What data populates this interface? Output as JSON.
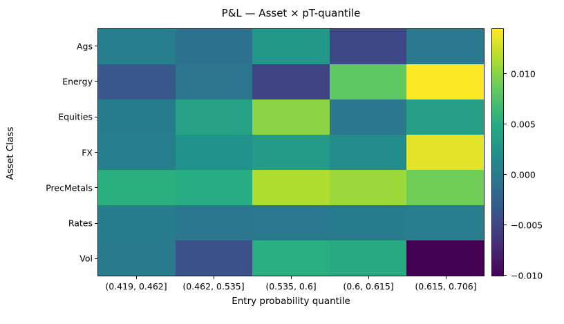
{
  "figure": {
    "background": "#ffffff",
    "text_color": "#000000",
    "spine_color": "#111111"
  },
  "chart_data": {
    "type": "heatmap",
    "title": "P&L — Asset × pT-quantile",
    "xlabel": "Entry probability quantile",
    "ylabel": "Asset Class",
    "colormap": "viridis",
    "rows": [
      "Ags",
      "Energy",
      "Equities",
      "FX",
      "PrecMetals",
      "Rates",
      "Vol"
    ],
    "columns": [
      "(0.419, 0.462]",
      "(0.462, 0.535]",
      "(0.535, 0.6]",
      "(0.6, 0.615]",
      "(0.615, 0.706]"
    ],
    "values": [
      [
        0.0004,
        -0.001,
        0.0028,
        -0.0048,
        -0.0002
      ],
      [
        -0.0034,
        -0.0006,
        -0.0052,
        0.0084,
        0.0145
      ],
      [
        0.0002,
        0.0039,
        0.0101,
        -0.0004,
        0.0038
      ],
      [
        0.0004,
        0.0022,
        0.0033,
        0.0017,
        0.0135
      ],
      [
        0.0054,
        0.0051,
        0.0115,
        0.0108,
        0.009
      ],
      [
        0.0002,
        -0.0004,
        -0.0002,
        0.0001,
        0.0003
      ],
      [
        -0.0001,
        -0.0041,
        0.0053,
        0.0048,
        -0.0101
      ]
    ],
    "vmin": -0.0101,
    "vmax": 0.0145,
    "colorbar": {
      "position": "right",
      "tick_values": [
        0.01,
        0.005,
        0.0,
        -0.005,
        -0.01
      ],
      "tick_labels": [
        "0.010",
        "0.005",
        "0.000",
        "−0.005",
        "−0.010"
      ]
    },
    "grid": false,
    "legend": false
  }
}
